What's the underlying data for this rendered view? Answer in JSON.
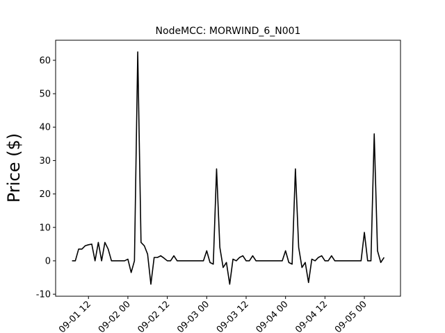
{
  "chart_data": {
    "type": "line",
    "title": "NodeMCC: MORWIND_6_N001",
    "y_label": "Price ($)",
    "x": [
      "09-01 07",
      "09-01 08",
      "09-01 09",
      "09-01 10",
      "09-01 11",
      "09-01 12",
      "09-01 13",
      "09-01 14",
      "09-01 15",
      "09-01 16",
      "09-01 17",
      "09-01 18",
      "09-01 19",
      "09-01 20",
      "09-01 21",
      "09-01 22",
      "09-01 23",
      "09-02 00",
      "09-02 01",
      "09-02 02",
      "09-02 03",
      "09-02 04",
      "09-02 05",
      "09-02 06",
      "09-02 07",
      "09-02 08",
      "09-02 09",
      "09-02 10",
      "09-02 11",
      "09-02 12",
      "09-02 13",
      "09-02 14",
      "09-02 15",
      "09-02 16",
      "09-02 17",
      "09-02 18",
      "09-02 19",
      "09-02 20",
      "09-02 21",
      "09-02 22",
      "09-02 23",
      "09-03 00",
      "09-03 01",
      "09-03 02",
      "09-03 03",
      "09-03 04",
      "09-03 05",
      "09-03 06",
      "09-03 07",
      "09-03 08",
      "09-03 09",
      "09-03 10",
      "09-03 11",
      "09-03 12",
      "09-03 13",
      "09-03 14",
      "09-03 15",
      "09-03 16",
      "09-03 17",
      "09-03 18",
      "09-03 19",
      "09-03 20",
      "09-03 21",
      "09-03 22",
      "09-03 23",
      "09-04 00",
      "09-04 01",
      "09-04 02",
      "09-04 03",
      "09-04 04",
      "09-04 05",
      "09-04 06",
      "09-04 07",
      "09-04 08",
      "09-04 09",
      "09-04 10",
      "09-04 11",
      "09-04 12",
      "09-04 13",
      "09-04 14",
      "09-04 15",
      "09-04 16",
      "09-04 17",
      "09-04 18",
      "09-04 19",
      "09-04 20",
      "09-04 21",
      "09-04 22",
      "09-04 23",
      "09-05 00",
      "09-05 01",
      "09-05 02",
      "09-05 03",
      "09-05 04",
      "09-05 05",
      "09-05 06"
    ],
    "series": [
      {
        "name": "MORWIND_6_N001",
        "color": "#000000",
        "values": [
          0,
          0,
          3.5,
          3.5,
          4.5,
          4.8,
          5,
          0,
          5.5,
          0,
          5.5,
          3.5,
          0,
          0,
          0,
          0,
          0,
          0.5,
          -3.5,
          0,
          62.5,
          5.5,
          4.5,
          2,
          -7,
          1,
          1,
          1.5,
          0.8,
          0,
          0,
          1.5,
          0,
          0,
          0,
          0,
          0,
          0,
          0,
          0,
          0,
          3,
          -0.5,
          -1,
          27.5,
          4,
          -2,
          -0.5,
          -7,
          0.5,
          0,
          1,
          1.5,
          0,
          0,
          1.5,
          0,
          0,
          0,
          0,
          0,
          0,
          0,
          0,
          0,
          3,
          -0.5,
          -1,
          27.5,
          4,
          -2,
          -0.5,
          -6.5,
          0.5,
          0,
          1,
          1.5,
          0,
          0,
          1.5,
          0,
          0,
          0,
          0,
          0,
          0,
          0,
          0,
          0,
          8.5,
          0,
          0,
          38,
          3,
          -0.5,
          1
        ]
      }
    ],
    "xlim": [
      "09-01 02",
      "09-05 11"
    ],
    "xticks": [
      "09-01 12",
      "09-02 00",
      "09-02 12",
      "09-03 00",
      "09-03 12",
      "09-04 00",
      "09-04 12",
      "09-05 00"
    ],
    "ylim": [
      -10.6,
      66
    ],
    "yticks": [
      -10,
      0,
      10,
      20,
      30,
      40,
      50,
      60
    ]
  }
}
